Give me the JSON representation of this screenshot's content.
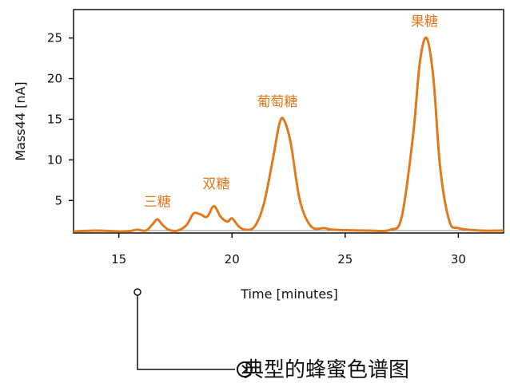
{
  "chart_data": {
    "type": "line",
    "title": "",
    "xlabel": "Time [minutes]",
    "ylabel": "Mass44 [nA]",
    "xlim": [
      13,
      32
    ],
    "ylim": [
      1,
      28.5
    ],
    "xticks": [
      15,
      20,
      25,
      30
    ],
    "yticks": [
      5,
      10,
      15,
      20,
      25
    ],
    "grid": false,
    "baseline": 1.3,
    "series": [
      {
        "color": "#e07a1f",
        "x": [
          13.0,
          14.0,
          15.0,
          15.5,
          15.8,
          16.2,
          16.5,
          16.7,
          16.9,
          17.2,
          17.6,
          18.0,
          18.3,
          18.6,
          18.9,
          19.2,
          19.5,
          19.8,
          20.0,
          20.3,
          20.6,
          21.0,
          21.4,
          21.8,
          22.1,
          22.3,
          22.6,
          23.0,
          23.5,
          24.1,
          24.5,
          26.0,
          27.0,
          27.5,
          28.0,
          28.3,
          28.6,
          28.9,
          29.2,
          29.6,
          30.0,
          31.0,
          32.0
        ],
        "y": [
          1.2,
          1.3,
          1.2,
          1.25,
          1.4,
          1.3,
          2.1,
          2.7,
          2.1,
          1.4,
          1.3,
          2.0,
          3.4,
          3.3,
          3.0,
          4.3,
          3.0,
          2.4,
          2.8,
          1.8,
          1.4,
          1.8,
          4.5,
          10.0,
          14.5,
          14.9,
          12.0,
          5.0,
          1.8,
          1.6,
          1.4,
          1.3,
          1.4,
          3.0,
          13.0,
          22.0,
          25.0,
          20.0,
          9.0,
          2.5,
          1.6,
          1.3,
          1.3
        ]
      }
    ],
    "annotations": [
      {
        "text": "三糖",
        "x": 16.7,
        "y": 4.3
      },
      {
        "text": "双糖",
        "x": 19.3,
        "y": 6.5
      },
      {
        "text": "葡萄糖",
        "x": 22.0,
        "y": 16.6
      },
      {
        "text": "果糖",
        "x": 28.5,
        "y": 26.5
      }
    ]
  },
  "caption": {
    "text": "典型的蜂蜜色谱图",
    "icon": "circled-arrow-icon"
  }
}
